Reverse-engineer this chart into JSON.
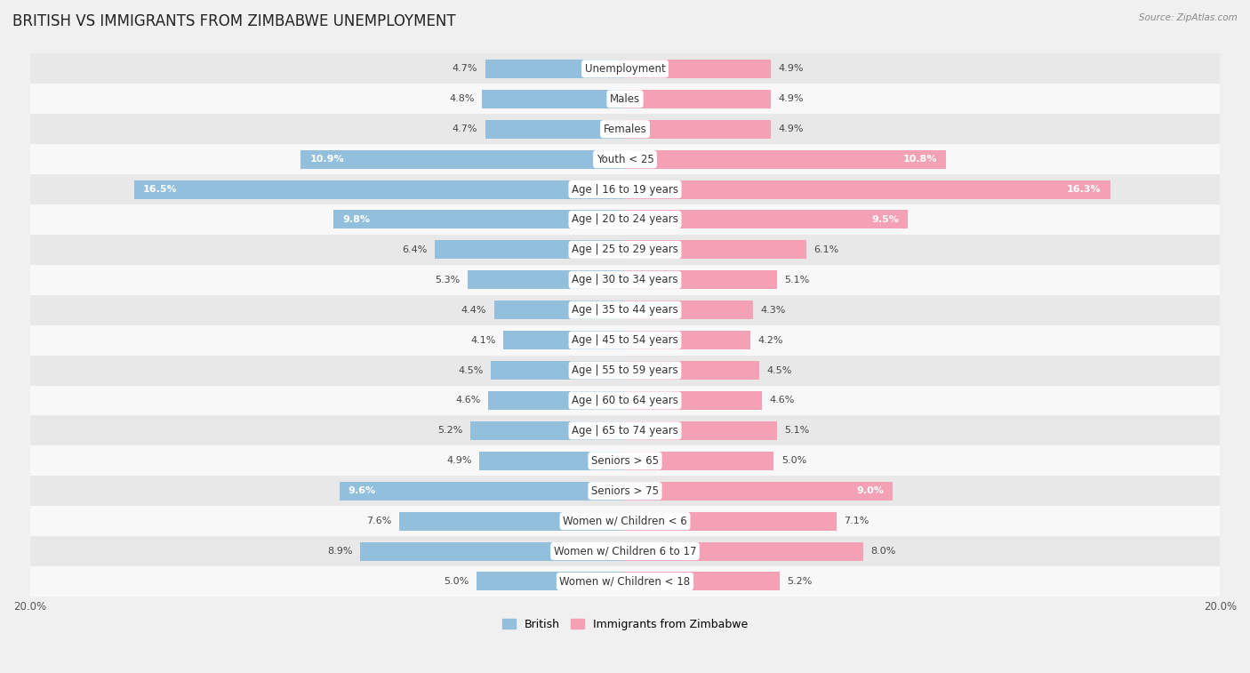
{
  "title": "BRITISH VS IMMIGRANTS FROM ZIMBABWE UNEMPLOYMENT",
  "source": "Source: ZipAtlas.com",
  "categories": [
    "Unemployment",
    "Males",
    "Females",
    "Youth < 25",
    "Age | 16 to 19 years",
    "Age | 20 to 24 years",
    "Age | 25 to 29 years",
    "Age | 30 to 34 years",
    "Age | 35 to 44 years",
    "Age | 45 to 54 years",
    "Age | 55 to 59 years",
    "Age | 60 to 64 years",
    "Age | 65 to 74 years",
    "Seniors > 65",
    "Seniors > 75",
    "Women w/ Children < 6",
    "Women w/ Children 6 to 17",
    "Women w/ Children < 18"
  ],
  "british": [
    4.7,
    4.8,
    4.7,
    10.9,
    16.5,
    9.8,
    6.4,
    5.3,
    4.4,
    4.1,
    4.5,
    4.6,
    5.2,
    4.9,
    9.6,
    7.6,
    8.9,
    5.0
  ],
  "zimbabwe": [
    4.9,
    4.9,
    4.9,
    10.8,
    16.3,
    9.5,
    6.1,
    5.1,
    4.3,
    4.2,
    4.5,
    4.6,
    5.1,
    5.0,
    9.0,
    7.1,
    8.0,
    5.2
  ],
  "british_color": "#92C0DC",
  "zimbabwe_color": "#F4A0B5",
  "bar_height": 0.62,
  "max_val": 20.0,
  "bg_color": "#F0F0F0",
  "row_odd_color": "#E8E8E8",
  "row_even_color": "#F8F8F8",
  "title_fontsize": 12,
  "label_fontsize": 8.5,
  "value_fontsize": 8,
  "legend_fontsize": 9,
  "axis_label_fontsize": 8.5,
  "large_threshold": 9.0
}
